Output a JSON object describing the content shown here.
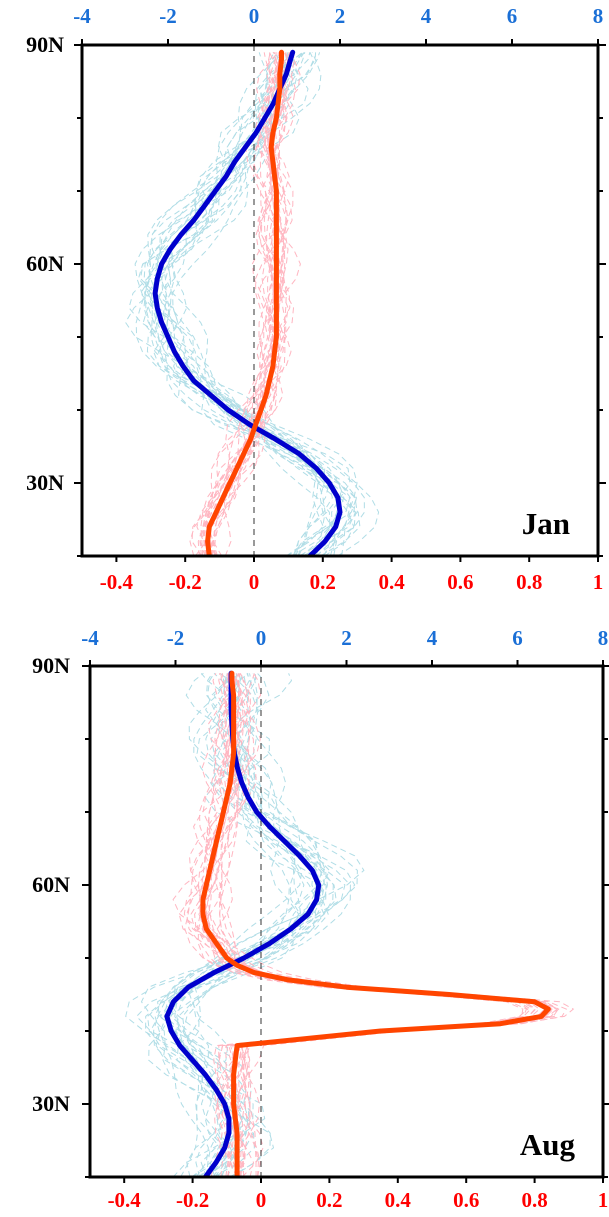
{
  "chart_data": [
    {
      "type": "line",
      "panel_label": "Jan",
      "y_axis": {
        "ticks": [
          30,
          60,
          90
        ],
        "tick_labels": [
          "30N",
          "60N",
          "90N"
        ],
        "range": [
          20,
          90
        ]
      },
      "top_axis": {
        "range": [
          -4,
          8
        ],
        "ticks": [
          -4,
          -2,
          0,
          2,
          4,
          6,
          8
        ],
        "tick_labels": [
          "-4",
          "-2",
          "0",
          "2",
          "4",
          "6",
          "8"
        ],
        "color": "#1a6fd6"
      },
      "bottom_axis": {
        "range": [
          -0.5,
          1
        ],
        "ticks": [
          -0.4,
          -0.2,
          0,
          0.2,
          0.4,
          0.6,
          0.8,
          1
        ],
        "tick_labels": [
          "-0.4",
          "-0.2",
          "0",
          "0.2",
          "0.4",
          "0.6",
          "0.8",
          "1"
        ],
        "color": "#ff0000"
      },
      "series": [
        {
          "axis": "top",
          "color": "#0000cc",
          "ensemble_color": "#b0dde6",
          "lat": [
            20,
            22,
            24,
            26,
            28,
            30,
            32,
            34,
            36,
            38,
            40,
            42,
            44,
            46,
            48,
            50,
            52,
            54,
            56,
            58,
            60,
            62,
            64,
            66,
            68,
            70,
            72,
            74,
            76,
            78,
            80,
            82,
            84,
            86,
            88,
            89
          ],
          "value": [
            1.3,
            1.65,
            1.9,
            2.0,
            1.95,
            1.75,
            1.45,
            1.05,
            0.5,
            -0.1,
            -0.6,
            -1.0,
            -1.4,
            -1.65,
            -1.85,
            -2.0,
            -2.15,
            -2.25,
            -2.3,
            -2.25,
            -2.15,
            -1.95,
            -1.7,
            -1.4,
            -1.15,
            -0.9,
            -0.65,
            -0.45,
            -0.2,
            0.05,
            0.25,
            0.45,
            0.6,
            0.75,
            0.85,
            0.9
          ]
        },
        {
          "axis": "bottom",
          "color": "#ff4500",
          "ensemble_color": "#ffb6c1",
          "lat": [
            20,
            22,
            24,
            26,
            28,
            30,
            32,
            34,
            36,
            38,
            40,
            42,
            44,
            46,
            48,
            50,
            52,
            54,
            56,
            58,
            60,
            62,
            64,
            66,
            68,
            70,
            72,
            74,
            76,
            78,
            80,
            82,
            84,
            86,
            88,
            89
          ],
          "value": [
            -0.13,
            -0.135,
            -0.13,
            -0.11,
            -0.09,
            -0.07,
            -0.05,
            -0.03,
            -0.01,
            0.005,
            0.02,
            0.035,
            0.045,
            0.055,
            0.06,
            0.065,
            0.065,
            0.065,
            0.065,
            0.065,
            0.065,
            0.065,
            0.065,
            0.065,
            0.065,
            0.065,
            0.06,
            0.055,
            0.05,
            0.055,
            0.065,
            0.07,
            0.075,
            0.075,
            0.08,
            0.08
          ]
        }
      ]
    },
    {
      "type": "line",
      "panel_label": "Aug",
      "y_axis": {
        "ticks": [
          30,
          60,
          90
        ],
        "tick_labels": [
          "30N",
          "60N",
          "90N"
        ],
        "range": [
          20,
          90
        ]
      },
      "top_axis": {
        "range": [
          -4,
          8
        ],
        "ticks": [
          -4,
          -2,
          0,
          2,
          4,
          6,
          8
        ],
        "tick_labels": [
          "-4",
          "-2",
          "0",
          "2",
          "4",
          "6",
          "8"
        ],
        "color": "#1a6fd6"
      },
      "bottom_axis": {
        "range": [
          -0.5,
          1
        ],
        "ticks": [
          -0.4,
          -0.2,
          0,
          0.2,
          0.4,
          0.6,
          0.8,
          1
        ],
        "tick_labels": [
          "-0.4",
          "-0.2",
          "0",
          "0.2",
          "0.4",
          "0.6",
          "0.8",
          "1"
        ],
        "color": "#ff0000"
      },
      "series": [
        {
          "axis": "top",
          "color": "#0000cc",
          "ensemble_color": "#b0dde6",
          "lat": [
            20,
            22,
            24,
            26,
            28,
            30,
            32,
            34,
            36,
            38,
            40,
            42,
            44,
            46,
            48,
            50,
            52,
            54,
            56,
            58,
            60,
            62,
            64,
            66,
            68,
            70,
            72,
            74,
            76,
            78,
            80,
            82,
            84,
            86,
            88,
            89
          ],
          "value": [
            -1.3,
            -1.05,
            -0.85,
            -0.75,
            -0.75,
            -0.85,
            -1.05,
            -1.3,
            -1.6,
            -1.9,
            -2.1,
            -2.2,
            -2.05,
            -1.7,
            -1.1,
            -0.4,
            0.2,
            0.7,
            1.1,
            1.3,
            1.35,
            1.2,
            0.9,
            0.55,
            0.2,
            -0.1,
            -0.3,
            -0.45,
            -0.55,
            -0.62,
            -0.66,
            -0.68,
            -0.7,
            -0.7,
            -0.7,
            -0.7
          ]
        },
        {
          "axis": "bottom",
          "color": "#ff4500",
          "ensemble_color": "#ffb6c1",
          "lat": [
            20,
            22,
            24,
            26,
            28,
            30,
            32,
            34,
            36,
            38,
            40,
            41,
            42,
            43,
            44,
            45,
            46,
            47,
            48,
            49,
            50,
            52,
            54,
            56,
            58,
            60,
            62,
            64,
            66,
            68,
            70,
            72,
            74,
            76,
            78,
            80,
            82,
            84,
            86,
            88,
            89
          ],
          "value": [
            -0.07,
            -0.07,
            -0.07,
            -0.07,
            -0.075,
            -0.08,
            -0.08,
            -0.08,
            -0.075,
            -0.07,
            0.35,
            0.7,
            0.82,
            0.84,
            0.8,
            0.55,
            0.25,
            0.08,
            -0.02,
            -0.07,
            -0.1,
            -0.13,
            -0.16,
            -0.17,
            -0.17,
            -0.16,
            -0.15,
            -0.14,
            -0.13,
            -0.12,
            -0.11,
            -0.1,
            -0.09,
            -0.085,
            -0.08,
            -0.08,
            -0.08,
            -0.08,
            -0.08,
            -0.085,
            -0.085
          ]
        }
      ]
    }
  ]
}
